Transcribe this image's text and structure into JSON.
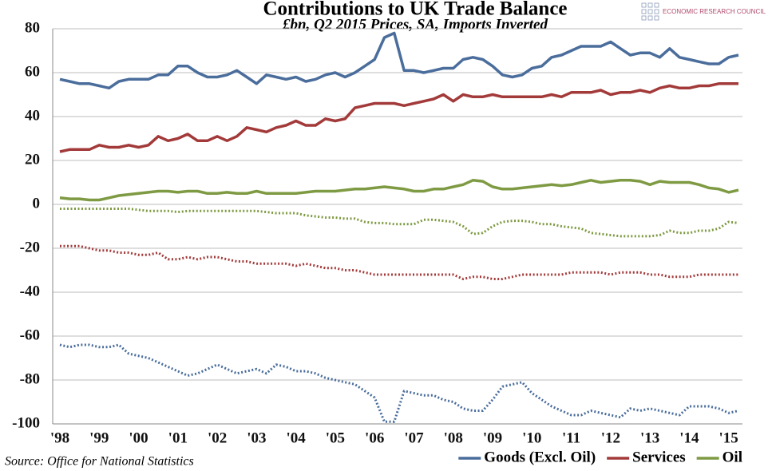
{
  "chart_data": {
    "type": "line",
    "title": "Contributions to UK Trade Balance",
    "subtitle": "£bn, Q2 2015 Prices, SA, Imports Inverted",
    "source": "Source: Office for National Statistics",
    "logo": "ECONOMIC RESEARCH COUNCIL",
    "categories": [
      "'98",
      null,
      null,
      null,
      "'99",
      null,
      null,
      null,
      "'00",
      null,
      null,
      null,
      "'01",
      null,
      null,
      null,
      "'02",
      null,
      null,
      null,
      "'03",
      null,
      null,
      null,
      "'04",
      null,
      null,
      null,
      "'05",
      null,
      null,
      null,
      "'06",
      null,
      null,
      null,
      "'07",
      null,
      null,
      null,
      "'08",
      null,
      null,
      null,
      "'09",
      null,
      null,
      null,
      "'10",
      null,
      null,
      null,
      "'11",
      null,
      null,
      null,
      "'12",
      null,
      null,
      null,
      "'13",
      null,
      null,
      null,
      "'14",
      null,
      null,
      null,
      "'15",
      null
    ],
    "ylim": [
      -100,
      80
    ],
    "yticks": [
      -100,
      -80,
      -60,
      -40,
      -20,
      0,
      20,
      40,
      60,
      80
    ],
    "grid": true,
    "legend": "bottom-right",
    "series": [
      {
        "name": "Goods (Excl. Oil)",
        "color": "#4a6d9c",
        "values": [
          57,
          56,
          55,
          55,
          54,
          53,
          56,
          57,
          57,
          57,
          59,
          59,
          63,
          63,
          60,
          58,
          58,
          59,
          61,
          58,
          55,
          59,
          58,
          57,
          58,
          56,
          57,
          59,
          60,
          58,
          60,
          63,
          66,
          76,
          78,
          61,
          61,
          60,
          61,
          62,
          62,
          66,
          67,
          66,
          63,
          59,
          58,
          59,
          62,
          63,
          67,
          68,
          70,
          72,
          72,
          72,
          74,
          71,
          68,
          69,
          69,
          67,
          71,
          67,
          66,
          65,
          64,
          64,
          67,
          68
        ]
      },
      {
        "name": "Services",
        "color": "#a33a3a",
        "values": [
          24,
          25,
          25,
          25,
          27,
          26,
          26,
          27,
          26,
          27,
          31,
          29,
          30,
          32,
          29,
          29,
          31,
          29,
          31,
          35,
          34,
          33,
          35,
          36,
          38,
          36,
          36,
          39,
          38,
          39,
          44,
          45,
          46,
          46,
          46,
          45,
          46,
          47,
          48,
          50,
          47,
          50,
          49,
          49,
          50,
          49,
          49,
          49,
          49,
          49,
          50,
          49,
          51,
          51,
          51,
          52,
          50,
          51,
          51,
          52,
          51,
          53,
          54,
          53,
          53,
          54,
          54,
          55,
          55,
          55
        ]
      },
      {
        "name": "Oil",
        "color": "#7e9a42",
        "values": [
          3,
          2.5,
          2.5,
          2,
          2,
          3,
          4,
          4.5,
          5,
          5.5,
          6,
          6,
          5.5,
          6,
          6,
          5,
          5,
          5.5,
          5,
          5,
          6,
          5,
          5,
          5,
          5,
          5.5,
          6,
          6,
          6,
          6.5,
          7,
          7,
          7.5,
          8,
          7.5,
          7,
          6,
          6,
          7,
          7,
          8,
          9,
          11,
          10.5,
          8,
          7,
          7,
          7.5,
          8,
          8.5,
          9,
          8.5,
          9,
          10,
          11,
          10,
          10.5,
          11,
          11,
          10.5,
          9,
          10.5,
          10,
          10,
          10,
          9,
          7.5,
          7,
          5.5,
          6.5
        ]
      },
      {
        "color": "#4a6d9c",
        "dash": true,
        "values": [
          -64,
          -65,
          -64,
          -64,
          -65,
          -65,
          -64,
          -68,
          -69,
          -70,
          -72,
          -74,
          -76,
          -78,
          -77,
          -75,
          -73,
          -75,
          -77,
          -76,
          -75,
          -77,
          -73,
          -74,
          -76,
          -76,
          -77,
          -79,
          -80,
          -81,
          -82,
          -85,
          -88,
          -99,
          -99,
          -85,
          -86,
          -87,
          -87,
          -89,
          -90,
          -93,
          -94,
          -94,
          -89,
          -83,
          -82,
          -81,
          -86,
          -89,
          -92,
          -94,
          -96,
          -96,
          -94,
          -95,
          -96,
          -97,
          -93,
          -94,
          -93,
          -94,
          -95,
          -96,
          -92,
          -92,
          -92,
          -93,
          -95,
          -94
        ]
      },
      {
        "color": "#a33a3a",
        "dash": true,
        "values": [
          -19,
          -19,
          -19,
          -20,
          -21,
          -21,
          -22,
          -22,
          -23,
          -23,
          -22,
          -25,
          -25,
          -24,
          -25,
          -24,
          -24,
          -25,
          -26,
          -26,
          -27,
          -27,
          -27,
          -27,
          -28,
          -27,
          -28,
          -29,
          -29,
          -30,
          -30,
          -31,
          -32,
          -32,
          -32,
          -32,
          -32,
          -32,
          -32,
          -32,
          -32,
          -34,
          -33,
          -33,
          -34,
          -34,
          -33,
          -32,
          -32,
          -32,
          -32,
          -32,
          -31,
          -31,
          -31,
          -31,
          -32,
          -31,
          -31,
          -31,
          -32,
          -32,
          -33,
          -33,
          -33,
          -32,
          -32,
          -32,
          -32,
          -32
        ]
      },
      {
        "color": "#7e9a42",
        "dash": true,
        "values": [
          -2,
          -2,
          -2,
          -2,
          -2,
          -2,
          -2,
          -2,
          -2.5,
          -3,
          -3,
          -3,
          -3.5,
          -3,
          -3,
          -3,
          -3,
          -3,
          -3,
          -3,
          -3,
          -3.5,
          -4,
          -4,
          -4,
          -5,
          -5.5,
          -6,
          -6,
          -6.5,
          -6.5,
          -8,
          -8.5,
          -8.5,
          -9,
          -9,
          -9,
          -7,
          -7,
          -7.5,
          -8,
          -10,
          -13.5,
          -13,
          -10,
          -8,
          -7.5,
          -7.5,
          -8,
          -9,
          -9,
          -10,
          -10.5,
          -11,
          -13,
          -13.5,
          -14,
          -14.5,
          -14.5,
          -14.5,
          -14.5,
          -14,
          -12,
          -13,
          -13,
          -12,
          -12,
          -11,
          -8,
          -8.5
        ]
      }
    ]
  }
}
